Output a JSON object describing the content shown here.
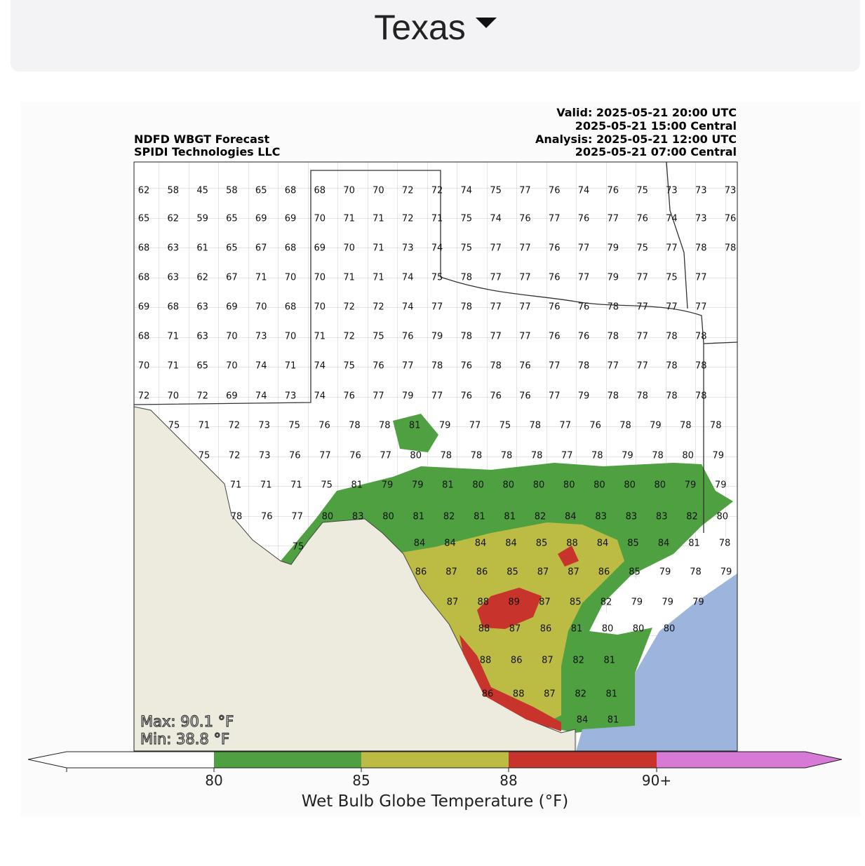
{
  "header": {
    "title": "Texas"
  },
  "map": {
    "title_left": [
      "NDFD WBGT Forecast",
      "SPIDI Technologies LLC"
    ],
    "title_right": [
      "Valid: 2025-05-21 20:00 UTC",
      "2025-05-21 15:00 Central",
      "Analysis: 2025-05-21 12:00 UTC",
      "2025-05-21 07:00 Central"
    ],
    "max": "Max: 90.1 °F",
    "min": "Min: 38.8 °F",
    "rows": [
      [
        62,
        58,
        45,
        58,
        65,
        68,
        68,
        70,
        70,
        72,
        72,
        74,
        75,
        77,
        76,
        74,
        76,
        75,
        73,
        73,
        73
      ],
      [
        65,
        62,
        59,
        65,
        69,
        69,
        70,
        71,
        71,
        72,
        71,
        75,
        74,
        76,
        77,
        76,
        77,
        76,
        74,
        73,
        76
      ],
      [
        68,
        63,
        61,
        65,
        67,
        68,
        69,
        70,
        71,
        73,
        74,
        75,
        77,
        77,
        76,
        77,
        79,
        75,
        77,
        78,
        78
      ],
      [
        68,
        63,
        62,
        67,
        71,
        70,
        70,
        71,
        71,
        74,
        75,
        78,
        77,
        77,
        76,
        77,
        79,
        77,
        75,
        77
      ],
      [
        69,
        68,
        63,
        69,
        70,
        68,
        70,
        72,
        72,
        74,
        77,
        78,
        77,
        77,
        76,
        76,
        78,
        77,
        77,
        77
      ],
      [
        68,
        71,
        63,
        70,
        73,
        70,
        71,
        72,
        75,
        76,
        79,
        78,
        77,
        77,
        76,
        76,
        78,
        77,
        78,
        78
      ],
      [
        70,
        71,
        65,
        70,
        74,
        71,
        74,
        75,
        76,
        77,
        78,
        76,
        78,
        76,
        77,
        78,
        77,
        77,
        78,
        78
      ],
      [
        72,
        70,
        72,
        69,
        74,
        73,
        74,
        76,
        77,
        79,
        77,
        76,
        76,
        76,
        77,
        79,
        78,
        78,
        78,
        78
      ],
      [
        75,
        71,
        72,
        73,
        75,
        76,
        78,
        78,
        81,
        79,
        77,
        75,
        78,
        77,
        76,
        78,
        79,
        78,
        78
      ],
      [
        75,
        72,
        73,
        76,
        77,
        76,
        77,
        80,
        78,
        78,
        78,
        78,
        77,
        78,
        79,
        78,
        80,
        79
      ],
      [
        71,
        71,
        71,
        75,
        81,
        79,
        79,
        81,
        80,
        80,
        80,
        80,
        80,
        80,
        80,
        79,
        79
      ],
      [
        78,
        76,
        77,
        80,
        83,
        80,
        81,
        82,
        81,
        81,
        82,
        84,
        83,
        83,
        83,
        82,
        80
      ],
      [
        75
      ],
      [
        84,
        84,
        84,
        84,
        85,
        88,
        84,
        85,
        84,
        81,
        78
      ],
      [
        86,
        87,
        86,
        85,
        87,
        87,
        86,
        85,
        79,
        78,
        79
      ],
      [
        87,
        88,
        89,
        87,
        85,
        82,
        79,
        79,
        79
      ],
      [
        88,
        87,
        86,
        81,
        80,
        80,
        80
      ],
      [
        88,
        86,
        87,
        82,
        81
      ],
      [
        86,
        88,
        87,
        82,
        81
      ],
      [
        84,
        81
      ]
    ]
  },
  "colorbar": {
    "labels": [
      80,
      85,
      88,
      "90+"
    ],
    "title": "Wet Bulb Globe Temperature (°F)"
  }
}
